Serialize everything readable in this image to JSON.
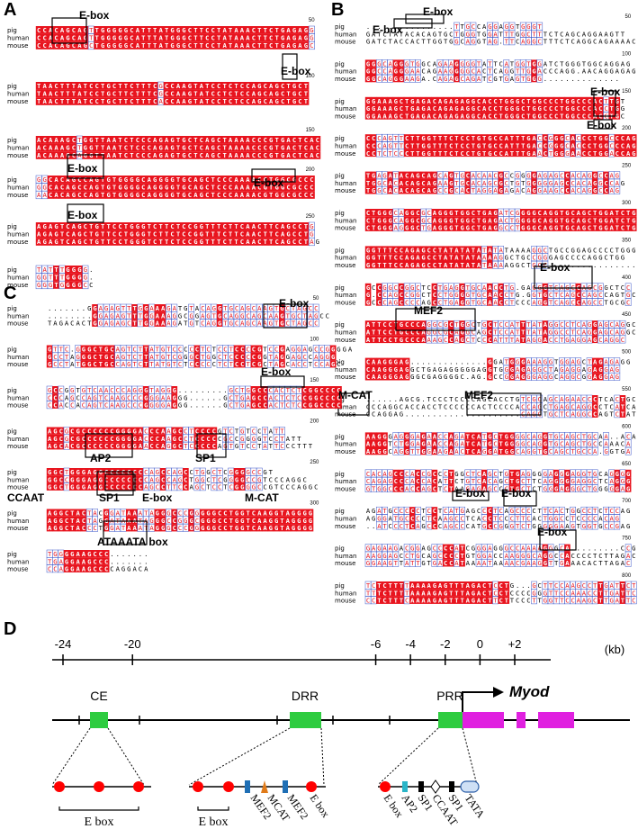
{
  "panels": {
    "A": {
      "letter": "A",
      "species": [
        "pig",
        "human",
        "mouse"
      ],
      "blocks": [
        {
          "end": "50",
          "rows": [
            "CCACAGCAGTTGGGGGCATTTATGGGCTTCCTATAAACTTCTGAGAGG",
            "CCACAGCAGTTGGGGGCATTTATGGGCTTCCTATAAACTTCTGAGAGG",
            "CCACAGCAGCTGGGGGCATTTATGGGCTTCCTATAAACTTCTGAGAGC"
          ]
        },
        {
          "end": "100",
          "rows": [
            "TAACTTTATCCTGCTTCTTTCGCCAAGTATCCTCTCCAGCAGCTGCT",
            "TAACTTTATCCTGCTTCTTTCGCCAAGTATCCTCTCCAGCAGCTGCT",
            "TAACTTTATCCTGCTTCTTTCACCAAGTATCCTCTCCAGCAGCTGCT"
          ]
        },
        {
          "end": "150",
          "rows": [
            "ACAAAGCTGGTTAATCTCCCAGAGTGCTCAGCTAAAACCCGTGACTCAC",
            "ACAAAGCTGGTTAATCTCCCAGAGTGCTCAGCTAAAACCCGTGACTCAC",
            "ACAAAGCAGGTTAATCTCCCAGAGTGCTCAGCTAAAACCCGTGACTCAC"
          ]
        },
        {
          "end": "200",
          "rows": [
            "GGCACAGCCAGTGTGGGGCAGGGGTGCAGCTCCCAAAACGTGGCGCCC",
            "GGCACAGCCAGTGTGGGGCAGGGGTGCAGCTCCCAAAACGTGGCGCCC",
            "AACACAGCCAGTGTGGGGCAGGGGTGCAGCTCCCAAAACGTGGCGCCC"
          ]
        },
        {
          "end": "250",
          "rows": [
            "AGAGTCAGCTGTTCCTGGGTCTTCTCCGGTTTCTTCAACTTCAGCCTG",
            "AGAGTCAGCTGTTCCTGGGTCTTCTCCGGTTTCTTCAACTTCAGCCTG",
            "AGAGTCAGCTGTTCCTGGGTCTTCTCCGGTTTCTTCAACTTCAGCCTAG"
          ]
        },
        {
          "end": "",
          "rows": [
            "TATTTGGGG.",
            "GGTTTGGGG.",
            "GGGTGGGGCC"
          ]
        }
      ],
      "motifs": [
        "E-box",
        "E-box",
        "E-box",
        "E-box",
        "E-box"
      ]
    },
    "B": {
      "letter": "B",
      "species": [
        "pig",
        "human",
        "mouse"
      ],
      "blocks": [
        {
          "end": "50",
          "rows": [
            "................TTGCCAGGAGGTGGGT",
            "GATCTATACACAGTGCTGGGTGGATTTGGCTTTCTCAGCAGGAAGTT",
            "GATCTACCACTTGGTGGCAGGTAG.TTCAGGCTTTCTCAGGCAGAAAAC"
          ]
        },
        {
          "end": "100",
          "rows": [
            "GGGCAGGGTGGCAGAAGGGGTATTCATGGTGGATCTGGGTGGCAGGAG",
            "GGCCAGGGAACAGAAGGGGCACTCAGGTTGGACCCAGG.AACAGGAGAG",
            "GGCAGGGAAGA.CAGAGCAGATCGTGAGTGGG.............."
          ]
        },
        {
          "end": "150",
          "rows": [
            "GGAAAGCTGAGACAGAGAGGCACCTGGGCTGGCCCTGGCCCACTTGT",
            "GGAAAGCTGAGACAGAGAGGCACCTGGGCTGGCCCTGGCCCACCTGG",
            "GGAAAGCTGAGACAGAGAGGCACCTGGGCTGGCCCTGGCCCACCTGC"
          ]
        },
        {
          "end": "200",
          "rows": [
            "CCCAGTTCTTGGTTTCTCCTGTGCCATTTGACCGGGCACCCTGGCCCAG",
            "CCCAGTTCTTGGTTTCTCCTGTGCCATTTGACCGGGCACCCTGGCCCAG",
            "CCTCTCCCTTGGTTTCTCCTGTGCCATTTGAACTGGGAACCTGGACCAG"
          ]
        },
        {
          "end": "250",
          "rows": [
            "TGAGATACAGCAGCAGTGCACAACGCCGGGGAGAGCCACAGGCCAG",
            "TGGCACACAGCAGAAGTGCACAGCGCTGTGGGGGAGCCACAGGCCAG",
            "TGGCACACAGCAGCCGCACTAGGAGAGACAGGAAGCCACAGGCCAG"
          ]
        },
        {
          "end": "300",
          "rows": [
            "CTGGGCAGGCGCAGGGTGGCTGAGATCGGGGCAGGTGCAGCTGGATCTG",
            "CTGGGCAGGCGCAGGGTGGCTGAGACTGGGGCAGGTGCAGCTGGATCTG",
            "CTGGGAGGGCTGAGGGTGGCTGAGGCCTGGGCAGGTGCAGCTGGATCTG"
          ]
        },
        {
          "end": "350",
          "rows": [
            "GGTTTCCAGAGCCTATATATATATATAAAAGGCTGCCGGAGCCCCTGGG",
            "GGTTTCCAGAGCCTATATATAAAAGGCTGCCGGGAGCCCCAGGCTGG",
            "GGTTTCCAGAGCCTATATATATAAAAGGCTGCC................"
          ]
        },
        {
          "end": "400",
          "rows": [
            "GCCGGCCGGCTCCTGAGGTGCAACCTG.GAGGGTCAGCCAGCGGCTCC",
            "G.CCAGCCGGCTCCTGGGGTGCAACCTG.GGTGCTCAGCCAGCCAGTGC",
            "GCCCAGCCCCAGCCTGAGGTGCAACCTCCCAGGTCAGCCAGCCTGCGC"
          ]
        },
        {
          "end": "450",
          "rows": [
            "ATTCCTGCCCAGGCGCTGGCTGCTCCATTTATAGGCCTCAGGAGCAGGC",
            "ATTCCTGCCCAGGCGCAGGCAGCTCCATTTATAGGCCTCAGGAGCAGGC",
            "ATTCCTGCCCAAAGCCAGCTCCCATTTATAGGACCTGAGGAGCAGGC"
          ]
        },
        {
          "end": "500",
          "rows": [
            "CAAGGGAG..............GGATGGGAAAGGTGGAGCTAGAGAGG",
            "CAAGGGAGGCTGAGAGGGGGAGGTGGGAGAGGCTAGAGGAGAGGAG",
            "CAAGGGAGGGCGAGGGGC.AG.GCCGGAGGGAGGCAGGCGGAGGAG"
          ]
        },
        {
          "end": "550",
          "rows": [
            "......AGCG.TCCCTCCCCAGCACCTGTCGCAGCAGAACCCTCACTGCG",
            "CCCAGGCACCACCTCCCCCCACTCCCCACCAGCTGAGCAGGCCTCATCAT",
            "CCAGGAG.....................CAGCTGCTCAGGCCAGTCTATG"
          ]
        },
        {
          "end": "600",
          "rows": [
            "AAGGGAGGGAGAACCAGATCATGCTGGGGCAGGTGCAGCTGCAA..ACA",
            "AAGGTCTGGAGAACCAGATCATGCTGGGGCAGGTGCAGCTGCCAAACA",
            "AAGGCAGGTTGGAAGAACTCAGGATGGCAGGTGCAGCTGCCA.GGTGA"
          ]
        },
        {
          "end": "650",
          "rows": [
            "CACAGCCCACCGCCCTGGCTCAGCTGTGAGGGGAGGGAGGTGCAGGGG",
            "CAGAGCCCACCACATTCTGTCACAGCTGCTTCAGGGGGAGGCTCAGGG",
            "GTGGCCCACCAGCTCTAAGAGAGCCCTGCTCTGGGAGGGCTGGGGGAG"
          ]
        },
        {
          "end": "700",
          "rows": [
            "AGATGCCCCCTCCTCATGAGCCCTCAGCCCCTTCACTGGCCTCTCCAG",
            "AGGGATGCCCCTCAAGCCTCACCTCCCTTCACTGGCCTCCCCACAG",
            "..ATCCCTCAGCCCAGCCCATGCCGGGTCTGGGGGAAGTGGTGCCGAG"
          ]
        },
        {
          "end": "750",
          "rows": [
            "GAGAAGACGGAGCCCCATCGGGAGGGCCAAAAGGGCA.........CCGGTAGAC",
            "AAGGAGCCTGCAGCCCCTGTGGACCAAGGGCAGGCCACCCCTCTTAGAC",
            "GGAAGTTATTGTGACCATAAAATAAAACGAAGGTTGAAACACTTAGAC"
          ]
        },
        {
          "end": "800",
          "rows": [
            "TCTCTTTTAAAAGAGTTTAGACTCCTG...GCTTCCAAGCCTTGATTCTTT",
            "TTTCTTTTAAAAGAGTTTAGACTCCTCCCCGGGTTCCAAACCTTGATTCTTT",
            "CCTCTTTCAAAAGAGTTTAGACTTCTTCCCTTGGTTCCAAGCTTGATTCTTT"
          ]
        },
        {
          "end": "",
          "rows": [
            "T...............",
            "TTCCCTCCGCCCCCAA",
            "GGCTTTGTTTGCTCGGGTT"
          ]
        }
      ],
      "motifs": [
        "E-box",
        "E-box",
        "E-box",
        "E-box",
        "E-box",
        "MEF2",
        "M-CAT",
        "MEF2",
        "E-box",
        "E-box",
        "E-box"
      ]
    },
    "C": {
      "letter": "C",
      "species": [
        "pig",
        "human",
        "mouse"
      ],
      "blocks": [
        {
          "end": "50",
          "rows": [
            ".......GGAGAGTTTGGAAAGATGTACAGGTGCAGCAAGTGCTAGCC",
            "........GGAGAGTTTGGAAAGGCGGAGTGCAGGCAGCAAGTGCTAGCC",
            "TAGACACTGGAGAGCTTGGAAAGATGTCAGGTGCAGCAAGTGCTAGCC"
          ]
        },
        {
          "end": "100",
          "rows": [
            "GTTC.GGGCTGCAGTCTTATGTCCCCCTCTCCTCCCCGTCCGAGGAGCCGGGGA",
            "GCCTAGGGCTGCAGTCTTATGTCGGGCTGGCTCCCCCGGTAGGAGCCAGGG",
            "GCCTATGGCTGCCAGTCTTATGTCTCCCCCTCTCCTCGCTAGCACCTCCAGC"
          ]
        },
        {
          "end": "150",
          "rows": [
            "GCCGGTGTCAACCCAGGGTAGGG.........GCTGGCCCACTCTCGGCCCC",
            "CCCAGCCAGTCAAGCCCGGGAAGGG......GCTGAGCCACTCTCCGGCCCC",
            "CCACCACAGTCAAGCCCGGGGAGGG......GCTGAGCCACTCTCCGGCCCC"
          ]
        },
        {
          "end": "200",
          "rows": [
            "AGCGCGCCCCCCGGGGACCCAAGCCTCCCCGTCTGTCCTATT",
            "AGCGCGCCCCCCGGGGACCCAAGCCTCCCCCGCCGGGGTCCTATT",
            "AGCACGCCCCCCGGGGAACCAGGCTCCCCCAGTGTCCTATTCCCTTT"
          ]
        },
        {
          "end": "250",
          "rows": [
            "GGCTGGGAGGCCCCCCCCAGCCAGCCTGGCTCGGGGCCGT",
            "GGCCGGGAGGCCCCCCCCAGCCAGCTGGCTCGGGGCCGTCCCAGGC",
            "GGCTGGGAGGCCCCCCCAGCCTTCCAGCTCCTCGGGGCCGTCCCAGGC"
          ]
        },
        {
          "end": "300",
          "rows": [
            "AGGCTACTACGGATAAATAGGGCCCGGGGGCCTGGTCAAGGTAGGGG",
            "AGGCTACTAGGATAAATAGGGCCGGGCGGGCCTGGTCAAGGTAGGGG",
            "AGGCTACCCTGGATAAATAGGGCCCGGGGGCCTGGTCAAGGTAGGGG"
          ]
        },
        {
          "end": "",
          "rows": [
            "TGGGGAAGCCC.......",
            "TGAGGAAGCCC.......",
            "CCAGGAAGCCCCAGGACA"
          ]
        }
      ],
      "motifs": [
        "E-box",
        "E-box",
        "AP2",
        "SP1",
        "CCAAT",
        "SP1",
        "E-box",
        "M-CAT",
        "ATAAATA box"
      ]
    },
    "D": {
      "letter": "D",
      "ticks": [
        "-24",
        "-20",
        "-6",
        "-4",
        "-2",
        "0",
        "+2"
      ],
      "tick_kb": [
        -24,
        -20,
        -6,
        -4,
        -2,
        0,
        2
      ],
      "unit": "(kb)",
      "regions": [
        "CE",
        "DRR",
        "PRR"
      ],
      "gene": "Myod",
      "ce_elements": [
        "E box"
      ],
      "drr_elements": [
        "E box",
        "MEF2",
        "MCAT",
        "MEF2",
        "E box"
      ],
      "prr_elements": [
        "E box",
        "AP2",
        "SP1",
        "CCAAT",
        "SP1",
        "TATA"
      ],
      "colors": {
        "region": "#2ecc40",
        "exon": "#e020e0",
        "ebox": "#ff0000",
        "conserved": "#e8141e",
        "mef2": "#1f6fb5",
        "mcat": "#e07b1a",
        "ap2": "#2ab5c8"
      }
    }
  }
}
